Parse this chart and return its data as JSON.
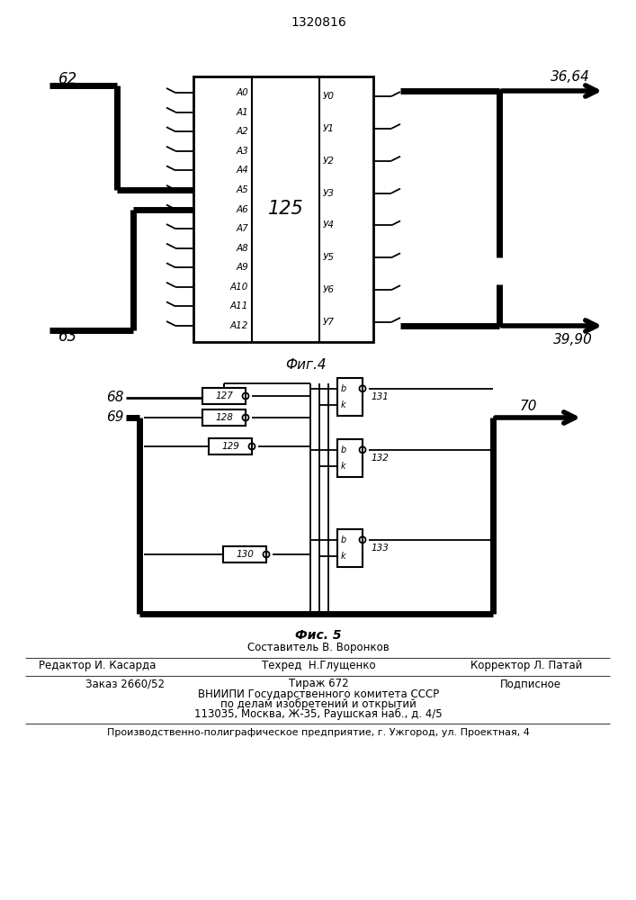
{
  "title": "1320816",
  "background": "#ffffff",
  "line_color": "#000000",
  "footer": {
    "fig5_label": "Фис. 5",
    "composer": "Составитель В. Воронков",
    "editor_label": "Редактор И. Касарда",
    "techred_label": "Техред  Н.Глущенко",
    "corrector_label": "Корректор Л. Патай",
    "order_label": "Заказ 2660/52",
    "tirazh_label": "Тираж 672",
    "podpisnoe_label": "Подписное",
    "vniiipi_line1": "ВНИИПИ Государственного комитета СССР",
    "vniiipi_line2": "по делам изобретений и открытий",
    "vniiipi_line3": "113035, Москва, Ж-35, Раушская наб., д. 4/5",
    "production_line": "Производственно-полиграфическое предприятие, г. Ужгород, ул. Проектная, 4"
  }
}
